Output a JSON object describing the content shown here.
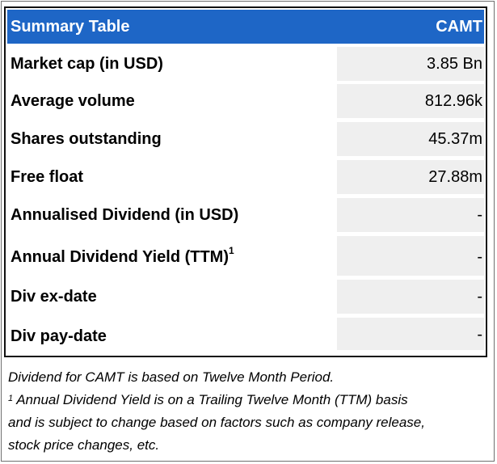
{
  "table": {
    "title": "Summary Table",
    "ticker": "CAMT",
    "rows": [
      {
        "label": "Market cap (in USD)",
        "value": "3.85 Bn"
      },
      {
        "label": "Average volume",
        "value": "812.96k"
      },
      {
        "label": "Shares outstanding",
        "value": "45.37m"
      },
      {
        "label": "Free float",
        "value": "27.88m"
      },
      {
        "label": "Annualised Dividend (in USD)",
        "value": "-"
      },
      {
        "label": "Annual Dividend Yield (TTM)",
        "label_sup": "1",
        "value": "-"
      },
      {
        "label": "Div ex-date",
        "value": "-"
      },
      {
        "label": "Div pay-date",
        "value": "-"
      }
    ]
  },
  "notes": {
    "line1": "Dividend for CAMT is based on Twelve Month Period.",
    "footnote_marker": "1",
    "line2": " Annual Dividend Yield is on a Trailing Twelve Month (TTM) basis",
    "line3": "and is subject to change based on factors such as company release,",
    "line4": "stock price changes, etc."
  },
  "colors": {
    "header_bg": "#1e66c6",
    "header_text": "#ffffff",
    "value_cell_bg": "#efefef",
    "border": "#111111"
  }
}
